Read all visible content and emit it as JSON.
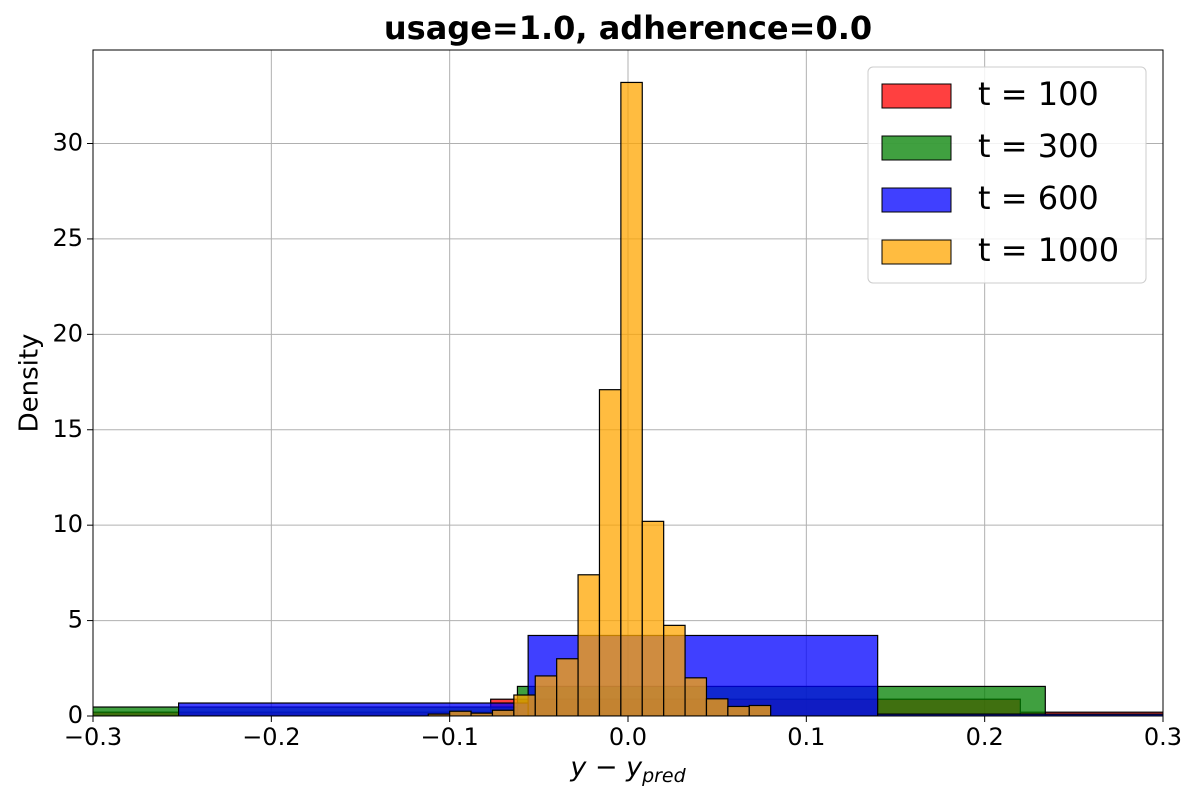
{
  "chart_data": {
    "type": "histogram",
    "title": "usage=1.0, adherence=0.0",
    "xlabel": [
      "y − y",
      "pred"
    ],
    "ylabel": "Density",
    "xlim": [
      -0.3,
      0.3
    ],
    "ylim": [
      0,
      34.9
    ],
    "xticks": [
      {
        "value": -0.3,
        "label": "−0.3"
      },
      {
        "value": -0.2,
        "label": "−0.2"
      },
      {
        "value": -0.1,
        "label": "−0.1"
      },
      {
        "value": 0,
        "label": "0.0"
      },
      0.1,
      0.2,
      0.3
    ],
    "yticks": [
      0,
      5,
      10,
      15,
      20,
      25,
      30
    ],
    "grid": true,
    "legend": "upper right",
    "opacity": 0.75,
    "series": [
      {
        "name": "t = 100",
        "color": "#ff0000",
        "bins": [
          -0.4,
          -0.077,
          0.22,
          0.5
        ],
        "values": [
          0.2,
          0.88,
          0.2
        ]
      },
      {
        "name": "t = 300",
        "color": "#008000",
        "bins": [
          -0.35,
          -0.062,
          0.234,
          0.52
        ],
        "values": [
          0.47,
          1.55,
          0.1
        ]
      },
      {
        "name": "t = 600",
        "color": "#0000ff",
        "bins": [
          -0.252,
          -0.056,
          0.14,
          0.336
        ],
        "values": [
          0.68,
          4.22,
          0.1
        ]
      },
      {
        "name": "t = 1000",
        "color": "#ffa500",
        "bins": [
          -0.112,
          -0.1,
          -0.088,
          -0.076,
          -0.064,
          -0.052,
          -0.04,
          -0.028,
          -0.016,
          -0.004,
          0.008,
          0.02,
          0.032,
          0.044,
          0.056,
          0.068,
          0.08
        ],
        "values": [
          0.1,
          0.25,
          0.15,
          0.3,
          1.1,
          2.1,
          3.0,
          7.4,
          17.1,
          33.2,
          10.2,
          4.75,
          2.0,
          0.9,
          0.5,
          0.55
        ]
      }
    ]
  }
}
